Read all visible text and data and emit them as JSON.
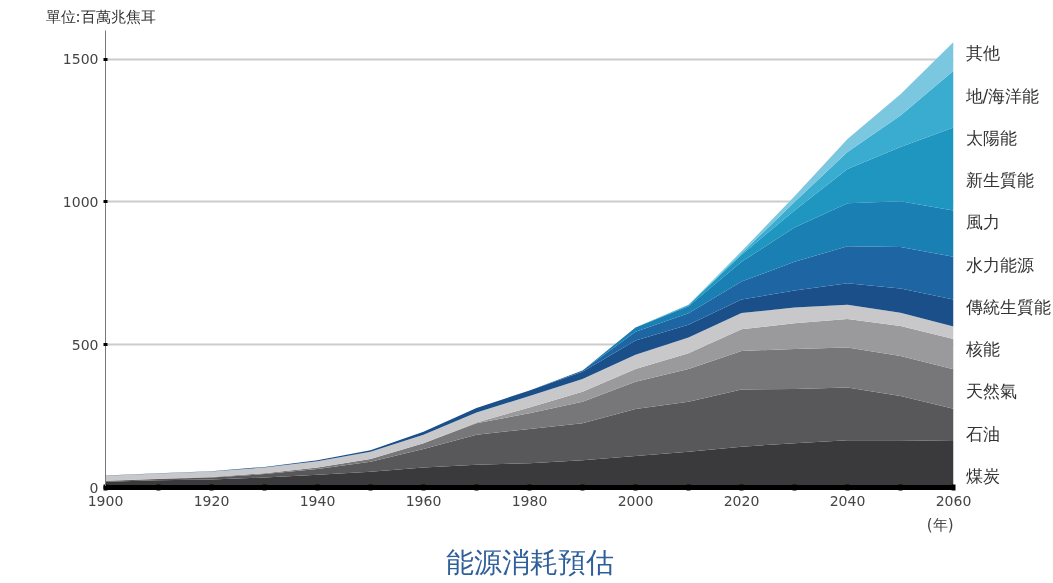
{
  "chart_data": {
    "type": "area",
    "stacked": true,
    "title": "能源消耗預估",
    "ylabel": "單位:百萬兆焦耳",
    "xlabel": "(年)",
    "x": [
      1900,
      1910,
      1920,
      1930,
      1940,
      1950,
      1960,
      1970,
      1980,
      1990,
      2000,
      2010,
      2020,
      2030,
      2040,
      2050,
      2060
    ],
    "xlim": [
      1900,
      2060
    ],
    "ylim": [
      0,
      1600
    ],
    "yticks": [
      0,
      500,
      1000,
      1500
    ],
    "xticks": [
      1900,
      {
        "value": 1910,
        "label": null
      },
      1920,
      {
        "value": 1930,
        "label": null
      },
      1940,
      {
        "value": 1950,
        "label": null
      },
      1960,
      {
        "value": 1970,
        "label": null
      },
      1980,
      {
        "value": 1990,
        "label": null
      },
      2000,
      {
        "value": 2010,
        "label": null
      },
      2020,
      {
        "value": 2030,
        "label": null
      },
      2040,
      {
        "value": 2050,
        "label": null
      },
      2060
    ],
    "grid": "y",
    "series": [
      {
        "name": "煤炭",
        "color": "#3a3a3c",
        "values": [
          20,
          25,
          28,
          35,
          45,
          55,
          70,
          80,
          85,
          95,
          110,
          125,
          143,
          155,
          165,
          165,
          163
        ]
      },
      {
        "name": "石油",
        "color": "#58585a",
        "values": [
          3,
          5,
          7,
          12,
          20,
          35,
          65,
          105,
          120,
          130,
          165,
          175,
          200,
          190,
          185,
          155,
          113
        ]
      },
      {
        "name": "天然氣",
        "color": "#77777a",
        "values": [
          1,
          1,
          2,
          3,
          5,
          10,
          20,
          40,
          55,
          75,
          95,
          115,
          135,
          140,
          140,
          140,
          138
        ]
      },
      {
        "name": "核能",
        "color": "#9a9a9c",
        "values": [
          0,
          0,
          0,
          0,
          0,
          0,
          0,
          3,
          20,
          35,
          45,
          55,
          76,
          90,
          100,
          105,
          106
        ]
      },
      {
        "name": "傳統生質能",
        "color": "#c8c8ca",
        "values": [
          17,
          18,
          19,
          20,
          22,
          25,
          30,
          35,
          40,
          45,
          50,
          55,
          57,
          55,
          50,
          47,
          44
        ]
      },
      {
        "name": "水力能源",
        "color": "#1a4f8a",
        "values": [
          1,
          1,
          1,
          2,
          3,
          5,
          10,
          15,
          20,
          25,
          50,
          45,
          47,
          60,
          75,
          85,
          94
        ]
      },
      {
        "name": "風力",
        "color": "#1d66a3",
        "values": [
          0,
          0,
          0,
          0,
          0,
          0,
          0,
          0,
          0,
          5,
          30,
          40,
          63,
          100,
          130,
          145,
          150
        ]
      },
      {
        "name": "新生質能",
        "color": "#1a7fb2",
        "values": [
          0,
          0,
          0,
          0,
          0,
          0,
          0,
          0,
          0,
          0,
          15,
          25,
          69,
          120,
          150,
          160,
          162
        ]
      },
      {
        "name": "太陽能",
        "color": "#1e96bf",
        "values": [
          0,
          0,
          0,
          0,
          0,
          0,
          0,
          0,
          0,
          0,
          0,
          3,
          25,
          60,
          120,
          190,
          290
        ]
      },
      {
        "name": "地/海洋能",
        "color": "#3aaccf",
        "values": [
          0,
          0,
          0,
          0,
          0,
          0,
          0,
          0,
          0,
          0,
          0,
          2,
          5,
          30,
          60,
          110,
          199
        ]
      },
      {
        "name": "其他",
        "color": "#7cc7e0",
        "values": [
          0,
          0,
          0,
          0,
          0,
          0,
          0,
          0,
          0,
          0,
          0,
          0,
          7,
          20,
          45,
          75,
          101
        ]
      }
    ]
  }
}
